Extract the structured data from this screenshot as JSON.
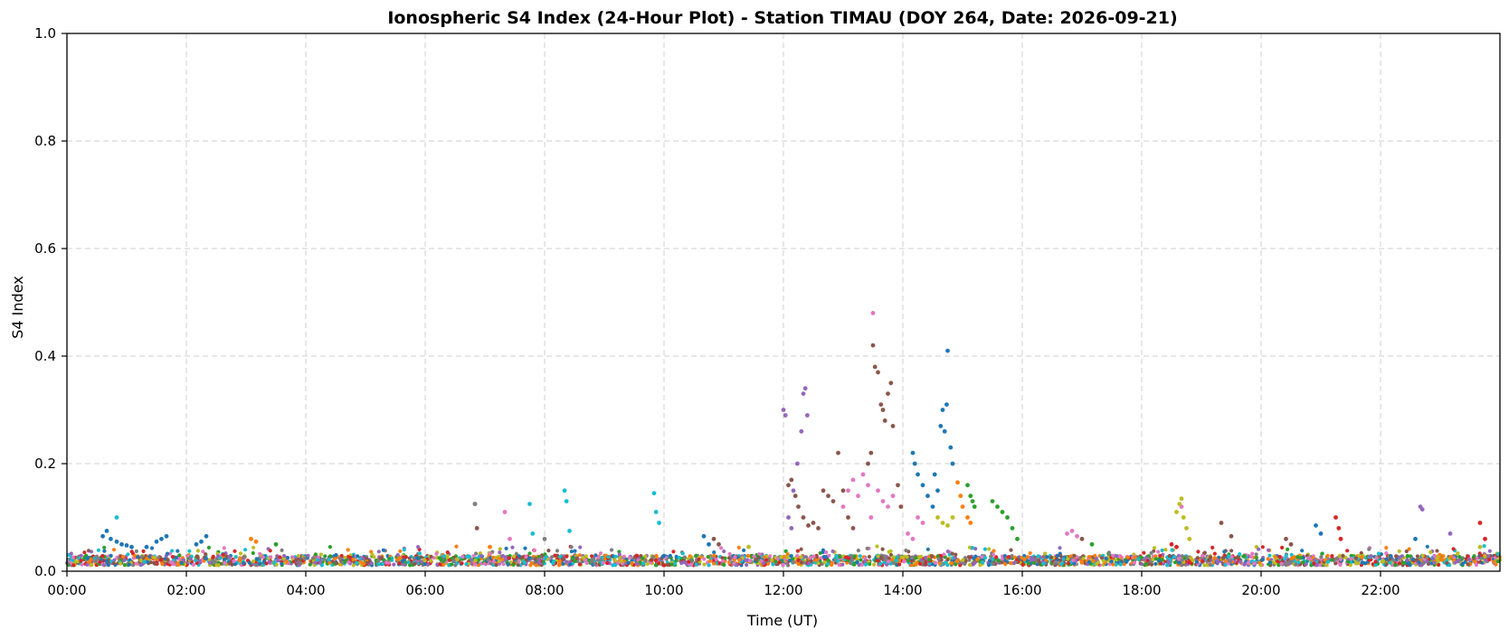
{
  "chart_data": {
    "type": "scatter",
    "title": "Ionospheric S4 Index (24-Hour Plot) - Station TIMAU (DOY 264, Date: 2026-09-21)",
    "xlabel": "Time (UT)",
    "ylabel": "S4 Index",
    "xlim": [
      "00:00",
      "24:00"
    ],
    "ylim": [
      0,
      1.0
    ],
    "x_ticks": [
      "00:00",
      "02:00",
      "04:00",
      "06:00",
      "08:00",
      "10:00",
      "12:00",
      "14:00",
      "16:00",
      "18:00",
      "20:00",
      "22:00"
    ],
    "y_ticks": [
      "0.0",
      "0.2",
      "0.4",
      "0.6",
      "0.8",
      "1.0"
    ],
    "grid": true,
    "legend": "none",
    "baseline_level": 0.02,
    "series": [
      {
        "color": "#1f77b4",
        "points": [
          [
            "00:36",
            0.065
          ],
          [
            "00:40",
            0.075
          ],
          [
            "00:44",
            0.06
          ],
          [
            "00:50",
            0.055
          ],
          [
            "00:55",
            0.05
          ],
          [
            "01:00",
            0.048
          ],
          [
            "01:05",
            0.045
          ],
          [
            "01:20",
            0.045
          ],
          [
            "01:30",
            0.055
          ],
          [
            "01:35",
            0.06
          ],
          [
            "01:40",
            0.065
          ],
          [
            "02:10",
            0.05
          ],
          [
            "02:15",
            0.055
          ],
          [
            "02:20",
            0.065
          ],
          [
            "10:40",
            0.065
          ],
          [
            "10:45",
            0.05
          ],
          [
            "14:10",
            0.22
          ],
          [
            "14:12",
            0.2
          ],
          [
            "14:15",
            0.18
          ],
          [
            "14:20",
            0.16
          ],
          [
            "14:25",
            0.14
          ],
          [
            "14:30",
            0.12
          ],
          [
            "14:32",
            0.18
          ],
          [
            "14:35",
            0.15
          ],
          [
            "14:38",
            0.27
          ],
          [
            "14:40",
            0.3
          ],
          [
            "14:42",
            0.26
          ],
          [
            "14:44",
            0.31
          ],
          [
            "14:45",
            0.41
          ],
          [
            "14:48",
            0.23
          ],
          [
            "14:50",
            0.2
          ],
          [
            "20:55",
            0.085
          ],
          [
            "21:00",
            0.07
          ],
          [
            "22:35",
            0.06
          ]
        ]
      },
      {
        "color": "#ff7f0e",
        "points": [
          [
            "03:05",
            0.06
          ],
          [
            "03:10",
            0.055
          ],
          [
            "14:55",
            0.165
          ],
          [
            "14:58",
            0.14
          ],
          [
            "15:00",
            0.12
          ],
          [
            "15:05",
            0.1
          ],
          [
            "15:08",
            0.09
          ],
          [
            "07:05",
            0.045
          ]
        ]
      },
      {
        "color": "#2ca02c",
        "points": [
          [
            "03:30",
            0.05
          ],
          [
            "15:05",
            0.16
          ],
          [
            "15:08",
            0.14
          ],
          [
            "15:10",
            0.13
          ],
          [
            "15:12",
            0.12
          ],
          [
            "15:30",
            0.13
          ],
          [
            "15:35",
            0.12
          ],
          [
            "15:40",
            0.11
          ],
          [
            "15:45",
            0.1
          ],
          [
            "15:50",
            0.08
          ],
          [
            "15:55",
            0.06
          ],
          [
            "17:10",
            0.05
          ]
        ]
      },
      {
        "color": "#d62728",
        "points": [
          [
            "18:30",
            0.05
          ],
          [
            "18:35",
            0.045
          ],
          [
            "21:15",
            0.1
          ],
          [
            "21:18",
            0.08
          ],
          [
            "21:20",
            0.06
          ],
          [
            "23:40",
            0.09
          ],
          [
            "23:45",
            0.06
          ]
        ]
      },
      {
        "color": "#9467bd",
        "points": [
          [
            "12:10",
            0.15
          ],
          [
            "12:14",
            0.2
          ],
          [
            "12:18",
            0.26
          ],
          [
            "12:20",
            0.33
          ],
          [
            "12:22",
            0.34
          ],
          [
            "12:24",
            0.29
          ],
          [
            "12:00",
            0.3
          ],
          [
            "12:02",
            0.29
          ],
          [
            "12:05",
            0.1
          ],
          [
            "12:08",
            0.08
          ],
          [
            "22:40",
            0.12
          ],
          [
            "22:42",
            0.115
          ],
          [
            "23:10",
            0.07
          ]
        ]
      },
      {
        "color": "#8c564b",
        "points": [
          [
            "06:50",
            0.125
          ],
          [
            "06:52",
            0.08
          ],
          [
            "12:05",
            0.16
          ],
          [
            "12:08",
            0.17
          ],
          [
            "12:12",
            0.14
          ],
          [
            "12:15",
            0.12
          ],
          [
            "12:20",
            0.1
          ],
          [
            "12:25",
            0.085
          ],
          [
            "12:30",
            0.09
          ],
          [
            "12:35",
            0.08
          ],
          [
            "12:40",
            0.15
          ],
          [
            "12:45",
            0.14
          ],
          [
            "12:50",
            0.13
          ],
          [
            "12:55",
            0.22
          ],
          [
            "13:00",
            0.15
          ],
          [
            "13:05",
            0.1
          ],
          [
            "13:10",
            0.08
          ],
          [
            "13:25",
            0.2
          ],
          [
            "13:28",
            0.22
          ],
          [
            "13:30",
            0.42
          ],
          [
            "13:32",
            0.38
          ],
          [
            "13:35",
            0.37
          ],
          [
            "13:38",
            0.31
          ],
          [
            "13:40",
            0.3
          ],
          [
            "13:42",
            0.28
          ],
          [
            "13:45",
            0.33
          ],
          [
            "13:48",
            0.35
          ],
          [
            "13:50",
            0.27
          ],
          [
            "13:55",
            0.16
          ],
          [
            "13:58",
            0.12
          ],
          [
            "10:50",
            0.06
          ],
          [
            "10:55",
            0.05
          ],
          [
            "17:00",
            0.06
          ],
          [
            "19:20",
            0.09
          ],
          [
            "19:30",
            0.065
          ],
          [
            "20:25",
            0.06
          ],
          [
            "20:30",
            0.05
          ]
        ]
      },
      {
        "color": "#e377c2",
        "points": [
          [
            "07:20",
            0.11
          ],
          [
            "07:25",
            0.06
          ],
          [
            "13:00",
            0.12
          ],
          [
            "13:05",
            0.15
          ],
          [
            "13:10",
            0.17
          ],
          [
            "13:15",
            0.14
          ],
          [
            "13:20",
            0.18
          ],
          [
            "13:25",
            0.16
          ],
          [
            "13:28",
            0.1
          ],
          [
            "13:30",
            0.48
          ],
          [
            "13:35",
            0.15
          ],
          [
            "13:40",
            0.13
          ],
          [
            "13:45",
            0.12
          ],
          [
            "13:50",
            0.14
          ],
          [
            "14:05",
            0.07
          ],
          [
            "14:10",
            0.06
          ],
          [
            "14:15",
            0.1
          ],
          [
            "14:20",
            0.09
          ],
          [
            "16:45",
            0.07
          ],
          [
            "16:50",
            0.075
          ],
          [
            "16:55",
            0.065
          ],
          [
            "18:40",
            0.12
          ]
        ]
      },
      {
        "color": "#7f7f7f",
        "points": [
          [
            "06:50",
            0.125
          ],
          [
            "08:00",
            0.06
          ]
        ]
      },
      {
        "color": "#bcbd22",
        "points": [
          [
            "14:35",
            0.1
          ],
          [
            "14:40",
            0.09
          ],
          [
            "14:45",
            0.085
          ],
          [
            "14:50",
            0.1
          ],
          [
            "18:35",
            0.11
          ],
          [
            "18:38",
            0.125
          ],
          [
            "18:40",
            0.135
          ],
          [
            "18:42",
            0.1
          ],
          [
            "18:45",
            0.08
          ],
          [
            "18:48",
            0.06
          ],
          [
            "11:25",
            0.045
          ],
          [
            "23:40",
            0.045
          ]
        ]
      },
      {
        "color": "#17becf",
        "points": [
          [
            "00:50",
            0.1
          ],
          [
            "07:45",
            0.125
          ],
          [
            "07:48",
            0.07
          ],
          [
            "08:20",
            0.15
          ],
          [
            "08:22",
            0.13
          ],
          [
            "08:25",
            0.075
          ],
          [
            "09:50",
            0.145
          ],
          [
            "09:52",
            0.11
          ],
          [
            "09:55",
            0.09
          ]
        ]
      }
    ]
  }
}
